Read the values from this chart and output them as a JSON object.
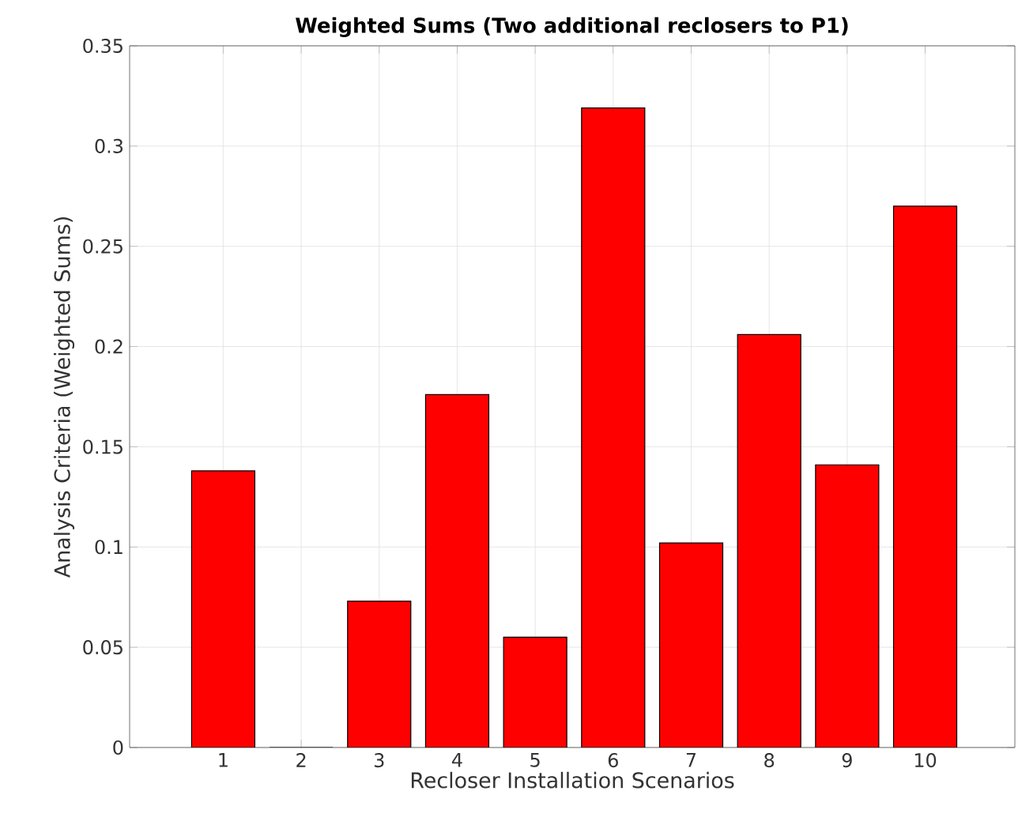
{
  "chart_data": {
    "type": "bar",
    "title": "Weighted Sums (Two additional reclosers to P1)",
    "xlabel": "Recloser Installation Scenarios",
    "ylabel": "Analysis Criteria (Weighted Sums)",
    "categories": [
      "1",
      "2",
      "3",
      "4",
      "5",
      "6",
      "7",
      "8",
      "9",
      "10"
    ],
    "values": [
      0.138,
      0,
      0.073,
      0.176,
      0.055,
      0.319,
      0.102,
      0.206,
      0.141,
      0.27
    ],
    "color": "#ff0000",
    "ylim": [
      0,
      0.35
    ],
    "yticks": [
      0,
      0.05,
      0.1,
      0.15,
      0.2,
      0.25,
      0.3,
      0.35
    ],
    "grid": true
  }
}
